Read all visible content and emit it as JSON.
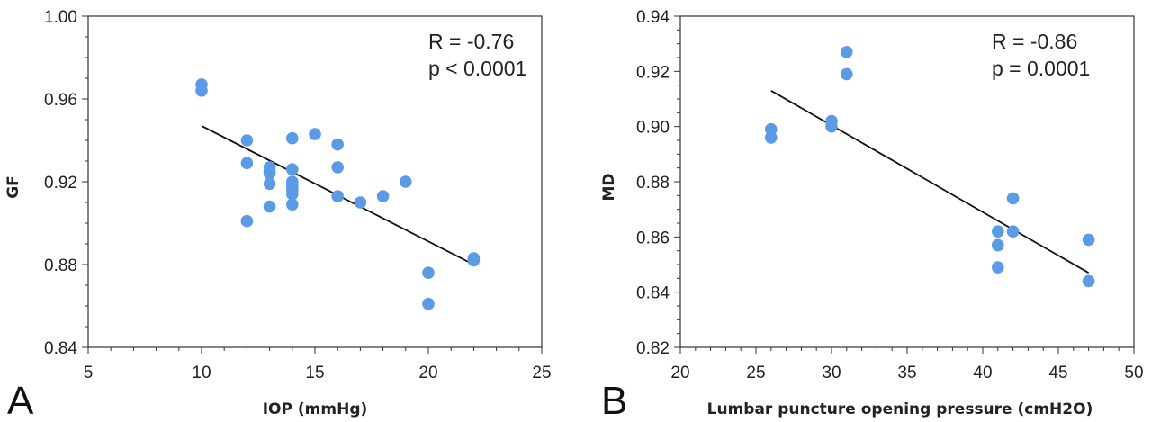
{
  "chart_data": [
    {
      "type": "scatter",
      "panel_label": "A",
      "title": "",
      "xlabel": "IOP (mmHg)",
      "ylabel": "GF",
      "xlim": [
        5,
        25
      ],
      "ylim": [
        0.84,
        1.0
      ],
      "x_ticks": [
        "5",
        "10",
        "15",
        "20",
        "25"
      ],
      "x_tick_values": [
        5,
        10,
        15,
        20,
        25
      ],
      "y_ticks": [
        "0.84",
        "0.88",
        "0.92",
        "0.96",
        "1.00"
      ],
      "y_tick_values": [
        0.84,
        0.88,
        0.92,
        0.96,
        1.0
      ],
      "x_minor_step": 1,
      "y_minor_step": 0.01,
      "grid": false,
      "legend": "none",
      "point_color": "#5B9BE6",
      "series": [
        {
          "x": [
            10,
            10,
            12,
            12,
            12,
            13,
            13,
            13,
            13,
            13,
            14,
            14,
            14,
            14,
            14,
            14,
            14,
            15,
            16,
            16,
            16,
            17,
            18,
            19,
            20,
            20,
            22,
            22
          ],
          "y": [
            0.967,
            0.964,
            0.94,
            0.929,
            0.901,
            0.927,
            0.925,
            0.924,
            0.919,
            0.908,
            0.941,
            0.926,
            0.92,
            0.918,
            0.916,
            0.914,
            0.909,
            0.943,
            0.938,
            0.927,
            0.913,
            0.91,
            0.913,
            0.92,
            0.876,
            0.861,
            0.883,
            0.882
          ]
        }
      ],
      "trendline": {
        "x": [
          10,
          22
        ],
        "y": [
          0.947,
          0.88
        ]
      },
      "annotations": [
        "R = -0.76",
        "p < 0.0001"
      ]
    },
    {
      "type": "scatter",
      "panel_label": "B",
      "title": "",
      "xlabel": "Lumbar puncture opening pressure (cmH2O)",
      "ylabel": "MD",
      "xlim": [
        20,
        50
      ],
      "ylim": [
        0.82,
        0.94
      ],
      "x_ticks": [
        "20",
        "25",
        "30",
        "35",
        "40",
        "45",
        "50"
      ],
      "x_tick_values": [
        20,
        25,
        30,
        35,
        40,
        45,
        50
      ],
      "y_ticks": [
        "0.82",
        "0.84",
        "0.86",
        "0.88",
        "0.90",
        "0.92",
        "0.94"
      ],
      "y_tick_values": [
        0.82,
        0.84,
        0.86,
        0.88,
        0.9,
        0.92,
        0.94
      ],
      "x_minor_step": 1,
      "y_minor_step": 0.005,
      "grid": false,
      "legend": "none",
      "point_color": "#5B9BE6",
      "series": [
        {
          "x": [
            26,
            26,
            30,
            30,
            31,
            31,
            41,
            41,
            41,
            41,
            42,
            42,
            47,
            47
          ],
          "y": [
            0.899,
            0.896,
            0.902,
            0.9,
            0.927,
            0.919,
            0.862,
            0.857,
            0.857,
            0.849,
            0.874,
            0.862,
            0.859,
            0.844
          ]
        }
      ],
      "trendline": {
        "x": [
          26,
          47
        ],
        "y": [
          0.913,
          0.847
        ]
      },
      "annotations": [
        "R = -0.86",
        "p = 0.0001"
      ]
    }
  ]
}
